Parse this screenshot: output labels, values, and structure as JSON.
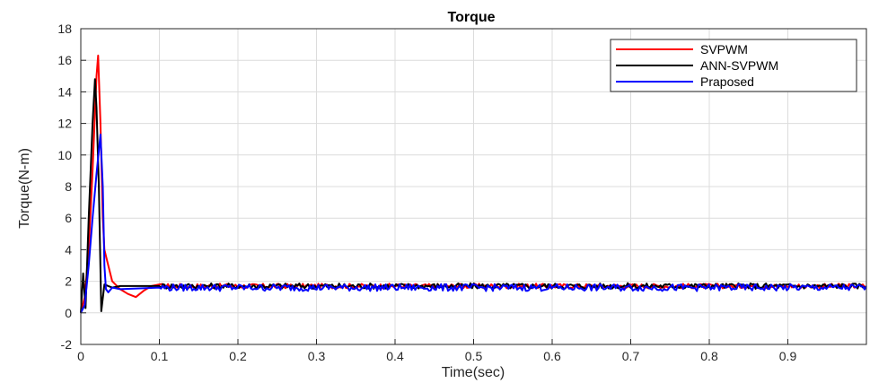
{
  "chart_data": {
    "type": "line",
    "title": "Torque",
    "xlabel": "Time(sec)",
    "ylabel": "Torque(N-m)",
    "xlim": [
      0,
      1
    ],
    "ylim": [
      -2,
      18
    ],
    "x_ticks": [
      0,
      0.1,
      0.2,
      0.3,
      0.4,
      0.5,
      0.6,
      0.7,
      0.8,
      0.9
    ],
    "x_tick_labels": [
      "0",
      "0.1",
      "0.2",
      "0.3",
      "0.4",
      "0.5",
      "0.6",
      "0.7",
      "0.8",
      "0.9"
    ],
    "y_ticks": [
      -2,
      0,
      2,
      4,
      6,
      8,
      10,
      12,
      14,
      16,
      18
    ],
    "y_tick_labels": [
      "-2",
      "0",
      "2",
      "4",
      "6",
      "8",
      "10",
      "12",
      "14",
      "16",
      "18"
    ],
    "grid": true,
    "legend_position": "top-right",
    "series": [
      {
        "name": "SVPWM",
        "color": "#ff0000",
        "steady_state": 1.7,
        "ripple": 0.15,
        "x": [
          0,
          0.005,
          0.01,
          0.015,
          0.02,
          0.022,
          0.025,
          0.028,
          0.03,
          0.035,
          0.04,
          0.05,
          0.06,
          0.07,
          0.08,
          0.09,
          0.1
        ],
        "y": [
          0,
          1,
          4,
          9,
          15,
          16.3,
          12,
          6,
          4,
          3,
          2,
          1.5,
          1.2,
          1.0,
          1.4,
          1.7,
          1.8
        ]
      },
      {
        "name": "ANN-SVPWM",
        "color": "#000000",
        "steady_state": 1.7,
        "ripple": 0.18,
        "x": [
          0,
          0.003,
          0.006,
          0.01,
          0.015,
          0.018,
          0.02,
          0.023,
          0.026,
          0.03,
          0.035,
          0.04,
          0.05,
          0.1
        ],
        "y": [
          0,
          2.5,
          0.3,
          6,
          12,
          14.8,
          13,
          8,
          0.1,
          1.8,
          1.7,
          1.6,
          1.7,
          1.7
        ]
      },
      {
        "name": "Praposed",
        "color": "#0000ff",
        "steady_state": 1.6,
        "ripple": 0.22,
        "x": [
          0,
          0.005,
          0.01,
          0.015,
          0.02,
          0.025,
          0.028,
          0.03,
          0.032,
          0.035,
          0.04,
          0.05,
          0.1
        ],
        "y": [
          0,
          0.5,
          3,
          6,
          8.8,
          11.3,
          8,
          3,
          1.5,
          1.3,
          1.6,
          1.5,
          1.6
        ]
      }
    ]
  }
}
